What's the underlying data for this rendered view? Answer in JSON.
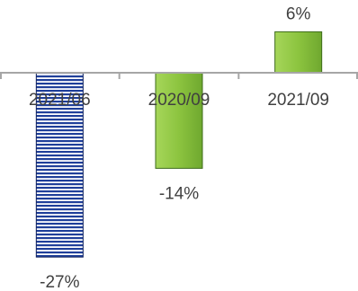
{
  "chart_data": {
    "type": "bar",
    "title": "",
    "xlabel": "",
    "ylabel": "",
    "categories": [
      "2021/06",
      "2020/09",
      "2021/09"
    ],
    "values": [
      -27,
      -14,
      6
    ],
    "data_labels": [
      "-27%",
      "-14%",
      "6%"
    ],
    "unit": "%",
    "ylim": [
      -30,
      8
    ],
    "grid": false,
    "legend": "none",
    "bar_styles": [
      {
        "fill": "#1f3f9a",
        "pattern": "horizontal-stripes",
        "stroke": "#0d1f5c"
      },
      {
        "fill": "#8cc43f",
        "pattern": "gradient",
        "stroke": "#3d6b1a"
      },
      {
        "fill": "#8cc43f",
        "pattern": "gradient",
        "stroke": "#3d6b1a"
      }
    ],
    "axis_color": "#a6a6a6",
    "text_color": "#404040"
  }
}
